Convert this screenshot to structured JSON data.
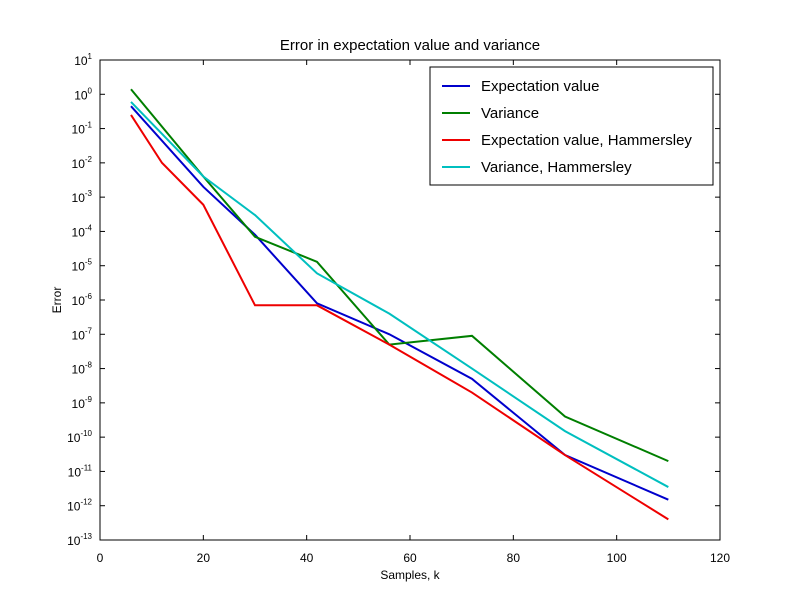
{
  "chart_data": {
    "type": "line",
    "title": "Error in expectation value and variance",
    "xlabel": "Samples, k",
    "ylabel": "Error",
    "xlim": [
      0,
      120
    ],
    "ylim": [
      1e-13,
      10
    ],
    "yscale": "log",
    "grid": false,
    "legend_position": "top-right",
    "x_ticks": [
      0,
      20,
      40,
      60,
      80,
      100,
      120
    ],
    "y_tick_base": "10",
    "y_tick_exponents": [
      "1",
      "0",
      "-1",
      "-2",
      "-3",
      "-4",
      "-5",
      "-6",
      "-7",
      "-8",
      "-9",
      "-10",
      "-11",
      "-12",
      "-13"
    ],
    "series": [
      {
        "name": "Expectation value",
        "color": "#0000cc",
        "x": [
          6,
          20,
          30,
          42,
          56,
          72,
          90,
          110
        ],
        "y": [
          0.45,
          0.002,
          8e-05,
          8e-07,
          1e-07,
          5e-09,
          3e-11,
          1.5e-12
        ]
      },
      {
        "name": "Variance",
        "color": "#007f00",
        "x": [
          6,
          20,
          30,
          42,
          56,
          72,
          90,
          110
        ],
        "y": [
          1.4,
          0.004,
          7e-05,
          1.3e-05,
          5e-08,
          9e-08,
          4e-10,
          2e-11
        ]
      },
      {
        "name": "Expectation value, Hammersley",
        "color": "#ee0000",
        "x": [
          6,
          12,
          20,
          30,
          42,
          56,
          72,
          90,
          110
        ],
        "y": [
          0.25,
          0.01,
          0.0006,
          7e-07,
          7e-07,
          5e-08,
          2e-09,
          3e-11,
          4e-13
        ]
      },
      {
        "name": "Variance, Hammersley",
        "color": "#00bfbf",
        "x": [
          6,
          20,
          30,
          42,
          56,
          72,
          90,
          110
        ],
        "y": [
          0.6,
          0.004,
          0.0003,
          6e-06,
          4e-07,
          1e-08,
          1.5e-10,
          3.5e-12
        ]
      }
    ]
  }
}
